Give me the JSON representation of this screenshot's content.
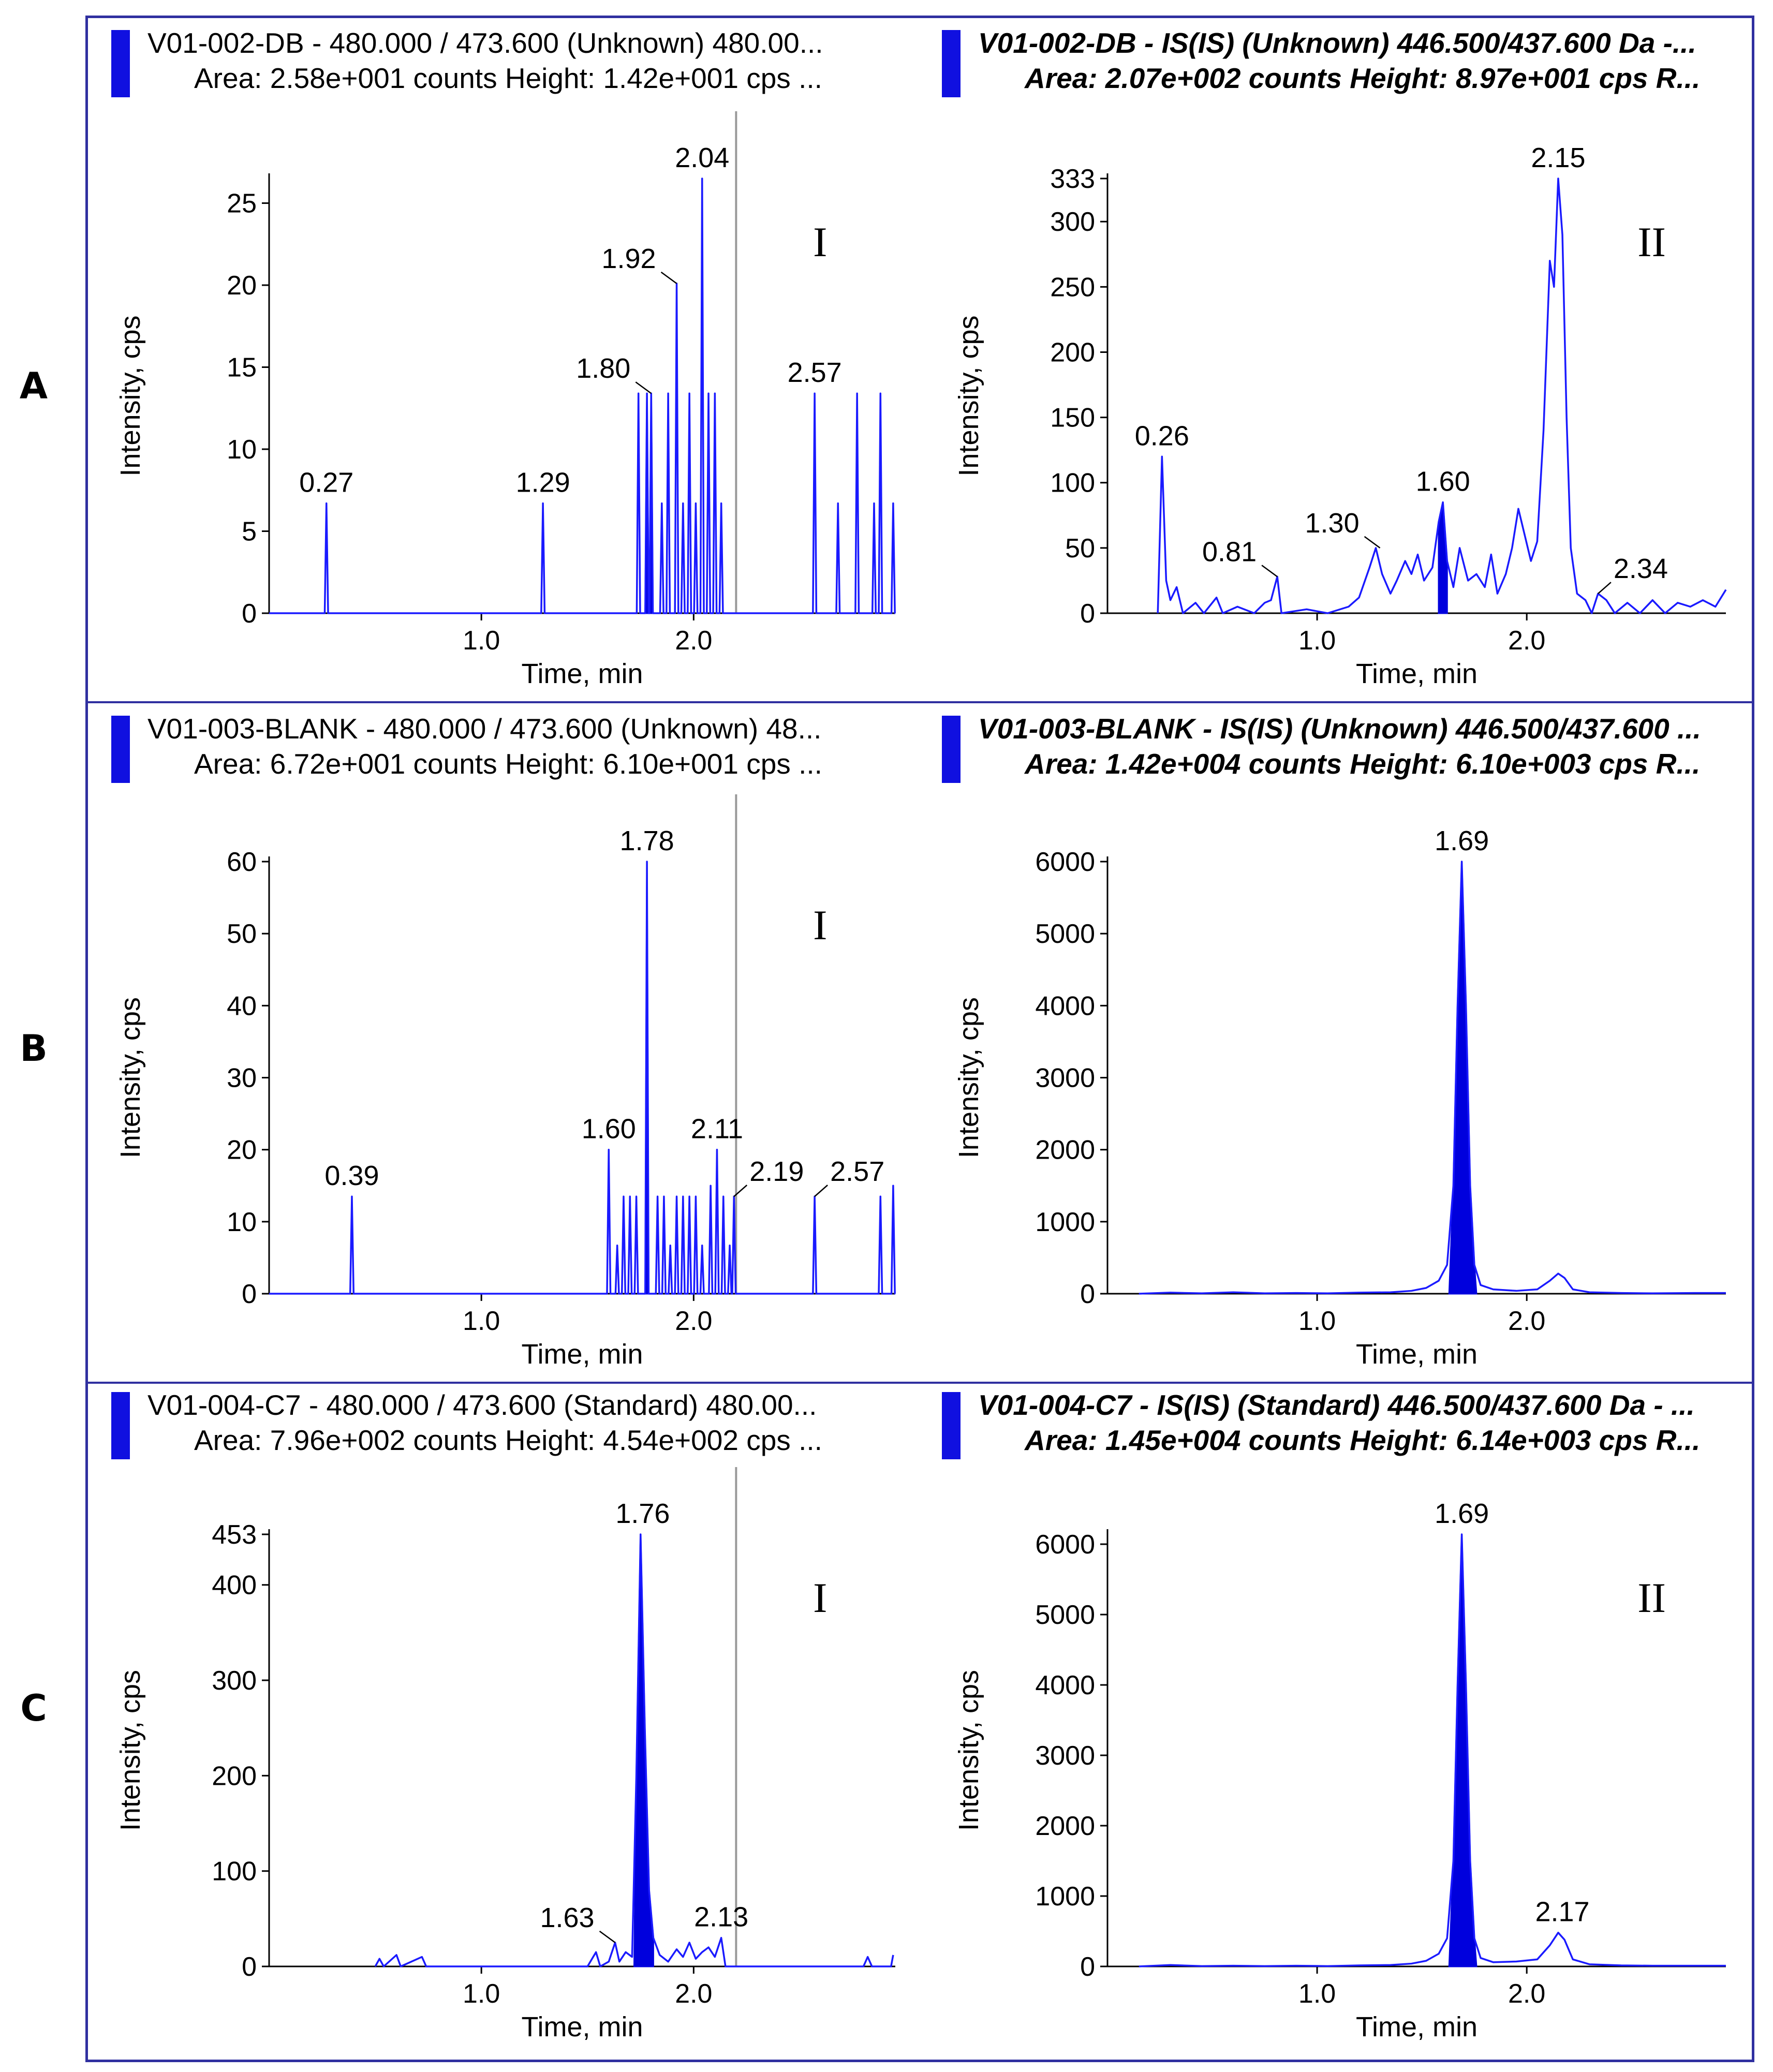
{
  "row_labels": [
    "A",
    "B",
    "C"
  ],
  "colors": {
    "trace": "#1a1aff",
    "fill": "#0000dd",
    "frame": "#3030a0",
    "marker_line": "#999999"
  },
  "chart_data": [
    {
      "type": "line",
      "header": {
        "line1": "V01-002-DB - 480.000 / 473.600 (Unknown) 480.00...",
        "line2": "Area: 2.58e+001 counts  Height: 1.42e+001 cps  ..."
      },
      "panel_label": "I",
      "xlabel": "Time, min",
      "ylabel": "Intensity, cps",
      "xlim": [
        0,
        2.95
      ],
      "ylim": [
        0,
        26.5
      ],
      "xticks": [
        1.0,
        2.0
      ],
      "xtick_labels": [
        "1.0",
        "2.0"
      ],
      "yticks": [
        0,
        5,
        10,
        15,
        20,
        25
      ],
      "ytick_labels": [
        "0",
        "5",
        "10",
        "15",
        "20",
        "25"
      ],
      "marker_line_x": 2.2,
      "peaks": [
        {
          "x": 0.27,
          "y": 6.7
        },
        {
          "x": 1.29,
          "y": 6.7
        },
        {
          "x": 1.74,
          "y": 13.4
        },
        {
          "x": 1.78,
          "y": 13.4
        },
        {
          "x": 1.8,
          "y": 13.4
        },
        {
          "x": 1.85,
          "y": 6.7
        },
        {
          "x": 1.88,
          "y": 13.4
        },
        {
          "x": 1.92,
          "y": 20.1
        },
        {
          "x": 1.95,
          "y": 6.7
        },
        {
          "x": 1.98,
          "y": 13.4
        },
        {
          "x": 2.01,
          "y": 6.7
        },
        {
          "x": 2.04,
          "y": 26.8
        },
        {
          "x": 2.07,
          "y": 13.4
        },
        {
          "x": 2.1,
          "y": 13.4
        },
        {
          "x": 2.13,
          "y": 6.7
        },
        {
          "x": 2.57,
          "y": 13.4
        },
        {
          "x": 2.68,
          "y": 6.7
        },
        {
          "x": 2.77,
          "y": 13.4
        },
        {
          "x": 2.85,
          "y": 6.7
        },
        {
          "x": 2.88,
          "y": 13.4
        },
        {
          "x": 2.94,
          "y": 6.7
        }
      ],
      "fill_range": [
        1.77,
        1.81
      ],
      "annotations": [
        {
          "x": 0.27,
          "y": 6.7,
          "label": "0.27"
        },
        {
          "x": 1.29,
          "y": 6.7,
          "label": "1.29"
        },
        {
          "x": 1.8,
          "y": 13.4,
          "label": "1.80",
          "leader": true
        },
        {
          "x": 1.92,
          "y": 20.1,
          "label": "1.92",
          "leader": true
        },
        {
          "x": 2.04,
          "y": 26.8,
          "label": "2.04"
        },
        {
          "x": 2.57,
          "y": 13.4,
          "label": "2.57"
        }
      ]
    },
    {
      "type": "line",
      "header": {
        "line1": "V01-002-DB - IS(IS) (Unknown) 446.500/437.600 Da -...",
        "line2": "Area: 2.07e+002 counts  Height: 8.97e+001 cps  R..."
      },
      "panel_label": "II",
      "xlabel": "Time, min",
      "ylabel": "Intensity, cps",
      "xlim": [
        0,
        2.95
      ],
      "ylim": [
        0,
        333
      ],
      "xticks": [
        1.0,
        2.0
      ],
      "xtick_labels": [
        "1.0",
        "2.0"
      ],
      "yticks": [
        0,
        50,
        100,
        150,
        200,
        250,
        300,
        333
      ],
      "ytick_labels": [
        "0",
        "50",
        "100",
        "150",
        "200",
        "250",
        "300",
        "333"
      ],
      "marker_line_x": null,
      "trace": [
        [
          0.24,
          0
        ],
        [
          0.26,
          120
        ],
        [
          0.28,
          25
        ],
        [
          0.3,
          10
        ],
        [
          0.33,
          20
        ],
        [
          0.36,
          0
        ],
        [
          0.42,
          8
        ],
        [
          0.46,
          0
        ],
        [
          0.52,
          12
        ],
        [
          0.55,
          0
        ],
        [
          0.62,
          5
        ],
        [
          0.7,
          0
        ],
        [
          0.75,
          8
        ],
        [
          0.78,
          10
        ],
        [
          0.81,
          28
        ],
        [
          0.83,
          0
        ],
        [
          0.95,
          3
        ],
        [
          1.05,
          0
        ],
        [
          1.15,
          5
        ],
        [
          1.2,
          12
        ],
        [
          1.25,
          35
        ],
        [
          1.28,
          50
        ],
        [
          1.31,
          30
        ],
        [
          1.35,
          15
        ],
        [
          1.38,
          25
        ],
        [
          1.42,
          40
        ],
        [
          1.45,
          30
        ],
        [
          1.48,
          45
        ],
        [
          1.51,
          25
        ],
        [
          1.55,
          35
        ],
        [
          1.58,
          70
        ],
        [
          1.6,
          85
        ],
        [
          1.62,
          40
        ],
        [
          1.65,
          20
        ],
        [
          1.68,
          50
        ],
        [
          1.72,
          25
        ],
        [
          1.76,
          30
        ],
        [
          1.8,
          20
        ],
        [
          1.83,
          45
        ],
        [
          1.86,
          15
        ],
        [
          1.9,
          30
        ],
        [
          1.93,
          50
        ],
        [
          1.96,
          80
        ],
        [
          1.99,
          60
        ],
        [
          2.02,
          40
        ],
        [
          2.05,
          55
        ],
        [
          2.08,
          140
        ],
        [
          2.11,
          270
        ],
        [
          2.13,
          250
        ],
        [
          2.15,
          333
        ],
        [
          2.17,
          290
        ],
        [
          2.19,
          150
        ],
        [
          2.21,
          50
        ],
        [
          2.24,
          15
        ],
        [
          2.28,
          10
        ],
        [
          2.31,
          0
        ],
        [
          2.34,
          15
        ],
        [
          2.38,
          10
        ],
        [
          2.42,
          0
        ],
        [
          2.48,
          8
        ],
        [
          2.54,
          0
        ],
        [
          2.6,
          10
        ],
        [
          2.66,
          0
        ],
        [
          2.72,
          8
        ],
        [
          2.78,
          5
        ],
        [
          2.84,
          10
        ],
        [
          2.9,
          5
        ],
        [
          2.95,
          18
        ]
      ],
      "fill_range": [
        1.58,
        1.62
      ],
      "annotations": [
        {
          "x": 0.26,
          "y": 120,
          "label": "0.26"
        },
        {
          "x": 0.81,
          "y": 28,
          "label": "0.81",
          "leader": true
        },
        {
          "x": 1.3,
          "y": 50,
          "label": "1.30",
          "leader": true
        },
        {
          "x": 1.6,
          "y": 85,
          "label": "1.60"
        },
        {
          "x": 2.15,
          "y": 333,
          "label": "2.15"
        },
        {
          "x": 2.34,
          "y": 15,
          "label": "2.34",
          "leader": true,
          "side": "right"
        }
      ]
    },
    {
      "type": "line",
      "header": {
        "line1": "V01-003-BLANK - 480.000 / 473.600 (Unknown) 48...",
        "line2": "Area: 6.72e+001 counts  Height: 6.10e+001 cps  ..."
      },
      "panel_label": "I",
      "xlabel": "Time, min",
      "ylabel": "Intensity, cps",
      "xlim": [
        0,
        2.95
      ],
      "ylim": [
        0,
        60
      ],
      "xticks": [
        1.0,
        2.0
      ],
      "xtick_labels": [
        "1.0",
        "2.0"
      ],
      "yticks": [
        0,
        10,
        20,
        30,
        40,
        50,
        60
      ],
      "ytick_labels": [
        "0",
        "10",
        "20",
        "30",
        "40",
        "50",
        "60"
      ],
      "marker_line_x": 2.2,
      "peaks": [
        {
          "x": 0.39,
          "y": 13.5
        },
        {
          "x": 1.6,
          "y": 20
        },
        {
          "x": 1.64,
          "y": 6.7
        },
        {
          "x": 1.67,
          "y": 13.5
        },
        {
          "x": 1.7,
          "y": 13.5
        },
        {
          "x": 1.73,
          "y": 13.5
        },
        {
          "x": 1.78,
          "y": 60
        },
        {
          "x": 1.83,
          "y": 13.5
        },
        {
          "x": 1.86,
          "y": 13.5
        },
        {
          "x": 1.89,
          "y": 6.7
        },
        {
          "x": 1.92,
          "y": 13.5
        },
        {
          "x": 1.95,
          "y": 13.5
        },
        {
          "x": 1.98,
          "y": 13.5
        },
        {
          "x": 2.01,
          "y": 13.5
        },
        {
          "x": 2.04,
          "y": 6.7
        },
        {
          "x": 2.08,
          "y": 15
        },
        {
          "x": 2.11,
          "y": 20
        },
        {
          "x": 2.14,
          "y": 13.5
        },
        {
          "x": 2.17,
          "y": 6.7
        },
        {
          "x": 2.19,
          "y": 13.5
        },
        {
          "x": 2.57,
          "y": 13.5
        },
        {
          "x": 2.88,
          "y": 13.5
        },
        {
          "x": 2.94,
          "y": 15
        }
      ],
      "fill_range": [
        1.76,
        1.8
      ],
      "annotations": [
        {
          "x": 0.39,
          "y": 13.5,
          "label": "0.39"
        },
        {
          "x": 1.6,
          "y": 20,
          "label": "1.60"
        },
        {
          "x": 1.78,
          "y": 60,
          "label": "1.78"
        },
        {
          "x": 2.11,
          "y": 20,
          "label": "2.11"
        },
        {
          "x": 2.19,
          "y": 13.5,
          "label": "2.19",
          "leader": true,
          "side": "right"
        },
        {
          "x": 2.57,
          "y": 13.5,
          "label": "2.57",
          "leader": true,
          "side": "right"
        }
      ]
    },
    {
      "type": "line",
      "header": {
        "line1": "V01-003-BLANK - IS(IS) (Unknown) 446.500/437.600 ...",
        "line2": "Area: 1.42e+004 counts  Height: 6.10e+003 cps  R..."
      },
      "panel_label": "",
      "xlabel": "Time, min",
      "ylabel": "Intensity, cps",
      "xlim": [
        0,
        2.95
      ],
      "ylim": [
        0,
        6000
      ],
      "xticks": [
        1.0,
        2.0
      ],
      "xtick_labels": [
        "1.0",
        "2.0"
      ],
      "yticks": [
        0,
        1000,
        2000,
        3000,
        4000,
        5000,
        6000
      ],
      "ytick_labels": [
        "0",
        "1000",
        "2000",
        "3000",
        "4000",
        "5000",
        "6000"
      ],
      "marker_line_x": null,
      "trace": [
        [
          0.15,
          0
        ],
        [
          0.3,
          15
        ],
        [
          0.45,
          5
        ],
        [
          0.6,
          20
        ],
        [
          0.75,
          5
        ],
        [
          0.9,
          10
        ],
        [
          1.05,
          5
        ],
        [
          1.2,
          15
        ],
        [
          1.35,
          20
        ],
        [
          1.45,
          40
        ],
        [
          1.52,
          80
        ],
        [
          1.58,
          180
        ],
        [
          1.62,
          400
        ],
        [
          1.65,
          1500
        ],
        [
          1.67,
          4000
        ],
        [
          1.69,
          6000
        ],
        [
          1.71,
          4000
        ],
        [
          1.73,
          1500
        ],
        [
          1.75,
          400
        ],
        [
          1.78,
          120
        ],
        [
          1.84,
          60
        ],
        [
          1.95,
          40
        ],
        [
          2.05,
          60
        ],
        [
          2.11,
          180
        ],
        [
          2.15,
          280
        ],
        [
          2.18,
          220
        ],
        [
          2.22,
          60
        ],
        [
          2.3,
          20
        ],
        [
          2.45,
          10
        ],
        [
          2.6,
          5
        ],
        [
          2.8,
          10
        ],
        [
          2.95,
          10
        ]
      ],
      "fill_range": [
        1.63,
        1.76
      ],
      "annotations": [
        {
          "x": 1.69,
          "y": 6000,
          "label": "1.69"
        }
      ]
    },
    {
      "type": "line",
      "header": {
        "line1": "V01-004-C7 - 480.000 / 473.600 (Standard) 480.00...",
        "line2": "Area: 7.96e+002 counts  Height: 4.54e+002 cps  ..."
      },
      "panel_label": "I",
      "xlabel": "Time, min",
      "ylabel": "Intensity, cps",
      "xlim": [
        0,
        2.95
      ],
      "ylim": [
        0,
        453
      ],
      "xticks": [
        1.0,
        2.0
      ],
      "xtick_labels": [
        "1.0",
        "2.0"
      ],
      "yticks": [
        0,
        100,
        200,
        300,
        400,
        453
      ],
      "ytick_labels": [
        "0",
        "100",
        "200",
        "300",
        "400",
        "453"
      ],
      "marker_line_x": 2.2,
      "trace": [
        [
          0.5,
          0
        ],
        [
          0.52,
          8
        ],
        [
          0.54,
          0
        ],
        [
          0.6,
          12
        ],
        [
          0.62,
          0
        ],
        [
          0.72,
          10
        ],
        [
          0.74,
          0
        ],
        [
          1.5,
          0
        ],
        [
          1.54,
          15
        ],
        [
          1.56,
          0
        ],
        [
          1.6,
          5
        ],
        [
          1.63,
          25
        ],
        [
          1.65,
          5
        ],
        [
          1.68,
          15
        ],
        [
          1.71,
          10
        ],
        [
          1.73,
          200
        ],
        [
          1.75,
          453
        ],
        [
          1.77,
          250
        ],
        [
          1.79,
          80
        ],
        [
          1.81,
          30
        ],
        [
          1.84,
          12
        ],
        [
          1.88,
          5
        ],
        [
          1.92,
          18
        ],
        [
          1.95,
          10
        ],
        [
          1.98,
          25
        ],
        [
          2.01,
          8
        ],
        [
          2.04,
          15
        ],
        [
          2.07,
          20
        ],
        [
          2.1,
          10
        ],
        [
          2.13,
          30
        ],
        [
          2.15,
          0
        ],
        [
          2.8,
          0
        ],
        [
          2.82,
          10
        ],
        [
          2.84,
          0
        ],
        [
          2.93,
          0
        ],
        [
          2.94,
          12
        ]
      ],
      "fill_range": [
        1.72,
        1.81
      ],
      "annotations": [
        {
          "x": 1.63,
          "y": 25,
          "label": "1.63",
          "leader": true
        },
        {
          "x": 1.76,
          "y": 453,
          "label": "1.76"
        },
        {
          "x": 2.13,
          "y": 30,
          "label": "2.13"
        }
      ]
    },
    {
      "type": "line",
      "header": {
        "line1": "V01-004-C7 - IS(IS) (Standard) 446.500/437.600 Da - ...",
        "line2": "Area: 1.45e+004 counts  Height: 6.14e+003 cps  R..."
      },
      "panel_label": "II",
      "xlabel": "Time, min",
      "ylabel": "Intensity, cps",
      "xlim": [
        0,
        2.95
      ],
      "ylim": [
        0,
        6140
      ],
      "xticks": [
        1.0,
        2.0
      ],
      "xtick_labels": [
        "1.0",
        "2.0"
      ],
      "yticks": [
        0,
        1000,
        2000,
        3000,
        4000,
        5000,
        6000
      ],
      "ytick_labels": [
        "0",
        "1000",
        "2000",
        "3000",
        "4000",
        "5000",
        "6000"
      ],
      "marker_line_x": null,
      "trace": [
        [
          0.15,
          0
        ],
        [
          0.3,
          20
        ],
        [
          0.45,
          5
        ],
        [
          0.6,
          10
        ],
        [
          0.75,
          5
        ],
        [
          0.9,
          10
        ],
        [
          1.05,
          5
        ],
        [
          1.2,
          15
        ],
        [
          1.35,
          20
        ],
        [
          1.45,
          40
        ],
        [
          1.52,
          80
        ],
        [
          1.58,
          180
        ],
        [
          1.62,
          400
        ],
        [
          1.65,
          1500
        ],
        [
          1.67,
          4000
        ],
        [
          1.69,
          6140
        ],
        [
          1.71,
          4000
        ],
        [
          1.73,
          1500
        ],
        [
          1.75,
          400
        ],
        [
          1.78,
          120
        ],
        [
          1.84,
          60
        ],
        [
          1.95,
          70
        ],
        [
          2.05,
          100
        ],
        [
          2.11,
          300
        ],
        [
          2.15,
          480
        ],
        [
          2.18,
          380
        ],
        [
          2.22,
          100
        ],
        [
          2.3,
          30
        ],
        [
          2.45,
          15
        ],
        [
          2.6,
          10
        ],
        [
          2.8,
          10
        ],
        [
          2.95,
          10
        ]
      ],
      "fill_range": [
        1.63,
        1.76
      ],
      "annotations": [
        {
          "x": 1.69,
          "y": 6140,
          "label": "1.69"
        },
        {
          "x": 2.17,
          "y": 480,
          "label": "2.17"
        }
      ]
    }
  ]
}
